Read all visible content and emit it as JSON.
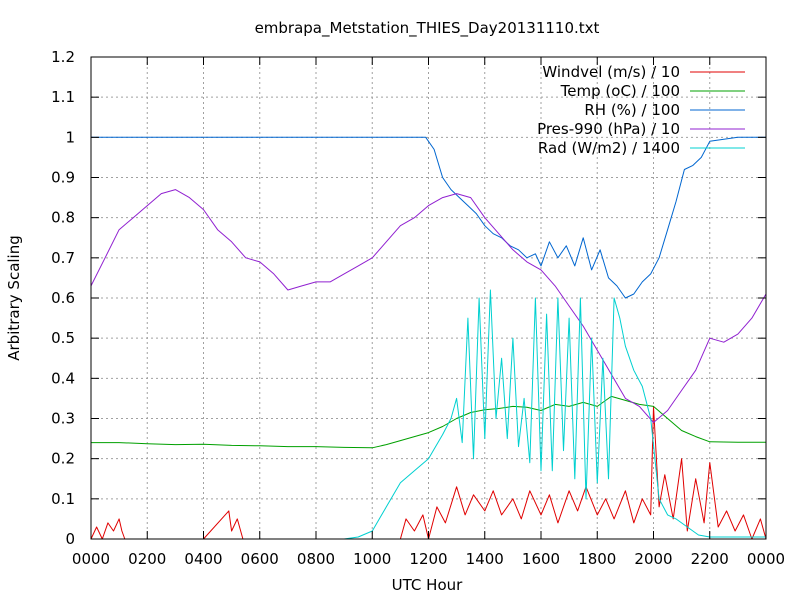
{
  "chart_data": {
    "type": "line",
    "title": "embrapa_Metstation_THIES_Day20131110.txt",
    "xlabel": "UTC Hour",
    "ylabel": "Arbitrary Scaling",
    "xlim": [
      0,
      24
    ],
    "ylim": [
      0,
      1.2
    ],
    "grid": true,
    "legend_position": "top-right",
    "x_ticks": [
      {
        "value": 0,
        "label": "0000"
      },
      {
        "value": 2,
        "label": "0200"
      },
      {
        "value": 4,
        "label": "0400"
      },
      {
        "value": 6,
        "label": "0600"
      },
      {
        "value": 8,
        "label": "0800"
      },
      {
        "value": 10,
        "label": "1000"
      },
      {
        "value": 12,
        "label": "1200"
      },
      {
        "value": 14,
        "label": "1400"
      },
      {
        "value": 16,
        "label": "1600"
      },
      {
        "value": 18,
        "label": "1800"
      },
      {
        "value": 20,
        "label": "2000"
      },
      {
        "value": 22,
        "label": "2200"
      },
      {
        "value": 24,
        "label": "0000"
      }
    ],
    "y_ticks": [
      {
        "value": 0,
        "label": "0"
      },
      {
        "value": 0.1,
        "label": "0.1"
      },
      {
        "value": 0.2,
        "label": "0.2"
      },
      {
        "value": 0.3,
        "label": "0.3"
      },
      {
        "value": 0.4,
        "label": "0.4"
      },
      {
        "value": 0.5,
        "label": "0.5"
      },
      {
        "value": 0.6,
        "label": "0.6"
      },
      {
        "value": 0.7,
        "label": "0.7"
      },
      {
        "value": 0.8,
        "label": "0.8"
      },
      {
        "value": 0.9,
        "label": "0.9"
      },
      {
        "value": 1,
        "label": "1"
      },
      {
        "value": 1.1,
        "label": "1.1"
      },
      {
        "value": 1.2,
        "label": "1.2"
      }
    ],
    "series": [
      {
        "name": "Windvel (m/s) / 10",
        "color": "#e00000",
        "x": [
          0,
          0.2,
          0.4,
          0.6,
          0.8,
          1.0,
          1.1,
          1.2,
          2.0,
          4.0,
          4.9,
          5.0,
          5.2,
          5.4,
          6.0,
          8.0,
          11.0,
          11.2,
          11.5,
          11.8,
          12.0,
          12.3,
          12.6,
          13.0,
          13.3,
          13.6,
          14.0,
          14.3,
          14.6,
          15.0,
          15.3,
          15.6,
          16.0,
          16.3,
          16.6,
          17.0,
          17.3,
          17.6,
          18.0,
          18.3,
          18.6,
          19.0,
          19.3,
          19.6,
          19.9,
          20.0,
          20.2,
          20.4,
          20.7,
          21.0,
          21.2,
          21.5,
          21.8,
          22.0,
          22.3,
          22.6,
          22.9,
          23.2,
          23.5,
          23.8,
          24.0
        ],
        "y": [
          0,
          0.03,
          0.0,
          0.04,
          0.02,
          0.05,
          0.02,
          0,
          0,
          0,
          0.07,
          0.02,
          0.05,
          0,
          0,
          0,
          0,
          0.05,
          0.02,
          0.06,
          0.0,
          0.08,
          0.04,
          0.13,
          0.06,
          0.11,
          0.07,
          0.12,
          0.06,
          0.1,
          0.05,
          0.12,
          0.06,
          0.11,
          0.04,
          0.12,
          0.07,
          0.13,
          0.06,
          0.1,
          0.05,
          0.12,
          0.04,
          0.1,
          0.06,
          0.33,
          0.08,
          0.16,
          0.05,
          0.2,
          0.02,
          0.15,
          0.04,
          0.19,
          0.03,
          0.07,
          0.02,
          0.06,
          0.0,
          0.05,
          0.0
        ]
      },
      {
        "name": "Temp (oC) / 100",
        "color": "#00a000",
        "x": [
          0,
          1,
          2,
          3,
          4,
          5,
          6,
          7,
          8,
          9,
          10,
          10.5,
          11,
          11.5,
          12,
          12.5,
          13,
          13.5,
          14,
          14.5,
          15,
          15.5,
          16,
          16.5,
          17,
          17.5,
          18,
          18.5,
          19,
          19.5,
          20,
          20.5,
          21,
          21.5,
          22,
          23,
          24
        ],
        "y": [
          0.24,
          0.24,
          0.237,
          0.235,
          0.236,
          0.233,
          0.232,
          0.23,
          0.23,
          0.228,
          0.227,
          0.235,
          0.245,
          0.255,
          0.265,
          0.28,
          0.3,
          0.315,
          0.322,
          0.325,
          0.33,
          0.328,
          0.32,
          0.335,
          0.33,
          0.34,
          0.33,
          0.355,
          0.345,
          0.335,
          0.33,
          0.3,
          0.27,
          0.255,
          0.242,
          0.241,
          0.241
        ]
      },
      {
        "name": "RH (%) / 100",
        "color": "#0066d0",
        "x": [
          0,
          2,
          4,
          6,
          8,
          10,
          11,
          11.5,
          11.9,
          12.2,
          12.5,
          12.8,
          13.1,
          13.4,
          13.7,
          14.0,
          14.3,
          14.6,
          14.9,
          15.2,
          15.5,
          15.8,
          16.0,
          16.3,
          16.6,
          16.9,
          17.2,
          17.5,
          17.8,
          18.1,
          18.4,
          18.7,
          19.0,
          19.3,
          19.6,
          19.9,
          20.2,
          20.5,
          20.8,
          21.1,
          21.4,
          21.7,
          22.0,
          23.0,
          24.0
        ],
        "y": [
          1.0,
          1.0,
          1.0,
          1.0,
          1.0,
          1.0,
          1.0,
          1.0,
          1.0,
          0.97,
          0.9,
          0.87,
          0.85,
          0.83,
          0.81,
          0.78,
          0.76,
          0.75,
          0.73,
          0.72,
          0.7,
          0.71,
          0.68,
          0.74,
          0.7,
          0.73,
          0.68,
          0.75,
          0.67,
          0.72,
          0.65,
          0.63,
          0.6,
          0.61,
          0.64,
          0.66,
          0.7,
          0.77,
          0.84,
          0.92,
          0.93,
          0.95,
          0.99,
          1.0,
          1.0
        ]
      },
      {
        "name": "Pres-990 (hPa) / 10",
        "color": "#9020d0",
        "x": [
          0,
          0.5,
          1.0,
          1.5,
          2.0,
          2.5,
          3.0,
          3.5,
          4.0,
          4.5,
          5.0,
          5.5,
          6.0,
          6.5,
          7.0,
          7.5,
          8.0,
          8.5,
          9.0,
          9.5,
          10.0,
          10.5,
          11.0,
          11.5,
          12.0,
          12.5,
          13.0,
          13.5,
          14.0,
          14.5,
          15.0,
          15.5,
          16.0,
          16.5,
          17.0,
          17.5,
          18.0,
          18.5,
          19.0,
          19.5,
          20.0,
          20.5,
          21.0,
          21.5,
          22.0,
          22.5,
          23.0,
          23.5,
          24.0
        ],
        "y": [
          0.63,
          0.7,
          0.77,
          0.8,
          0.83,
          0.86,
          0.87,
          0.85,
          0.82,
          0.77,
          0.74,
          0.7,
          0.69,
          0.66,
          0.62,
          0.63,
          0.64,
          0.64,
          0.66,
          0.68,
          0.7,
          0.74,
          0.78,
          0.8,
          0.83,
          0.85,
          0.86,
          0.85,
          0.8,
          0.76,
          0.72,
          0.69,
          0.67,
          0.63,
          0.58,
          0.53,
          0.47,
          0.41,
          0.35,
          0.33,
          0.29,
          0.32,
          0.37,
          0.42,
          0.5,
          0.49,
          0.51,
          0.55,
          0.61
        ]
      },
      {
        "name": "Rad (W/m2) / 1400",
        "color": "#00d0d0",
        "x": [
          0,
          2,
          4,
          6,
          8,
          9,
          9.5,
          10.0,
          10.5,
          11.0,
          11.5,
          12.0,
          12.5,
          12.8,
          13.0,
          13.2,
          13.4,
          13.6,
          13.8,
          14.0,
          14.2,
          14.4,
          14.6,
          14.8,
          15.0,
          15.2,
          15.4,
          15.6,
          15.8,
          16.0,
          16.2,
          16.4,
          16.6,
          16.8,
          17.0,
          17.2,
          17.4,
          17.6,
          17.8,
          18.0,
          18.2,
          18.4,
          18.6,
          18.8,
          19.0,
          19.3,
          19.6,
          19.9,
          20.2,
          20.5,
          20.8,
          21.2,
          21.6,
          22.0,
          23.0,
          24.0
        ],
        "y": [
          0,
          0,
          0,
          0,
          0,
          0.0,
          0.005,
          0.02,
          0.08,
          0.14,
          0.17,
          0.2,
          0.26,
          0.3,
          0.35,
          0.24,
          0.55,
          0.2,
          0.6,
          0.25,
          0.62,
          0.3,
          0.45,
          0.25,
          0.5,
          0.23,
          0.35,
          0.19,
          0.6,
          0.17,
          0.56,
          0.17,
          0.6,
          0.22,
          0.55,
          0.15,
          0.6,
          0.1,
          0.5,
          0.14,
          0.45,
          0.15,
          0.6,
          0.55,
          0.48,
          0.42,
          0.38,
          0.3,
          0.1,
          0.06,
          0.05,
          0.03,
          0.01,
          0.005,
          0.005,
          0.005
        ]
      }
    ]
  }
}
